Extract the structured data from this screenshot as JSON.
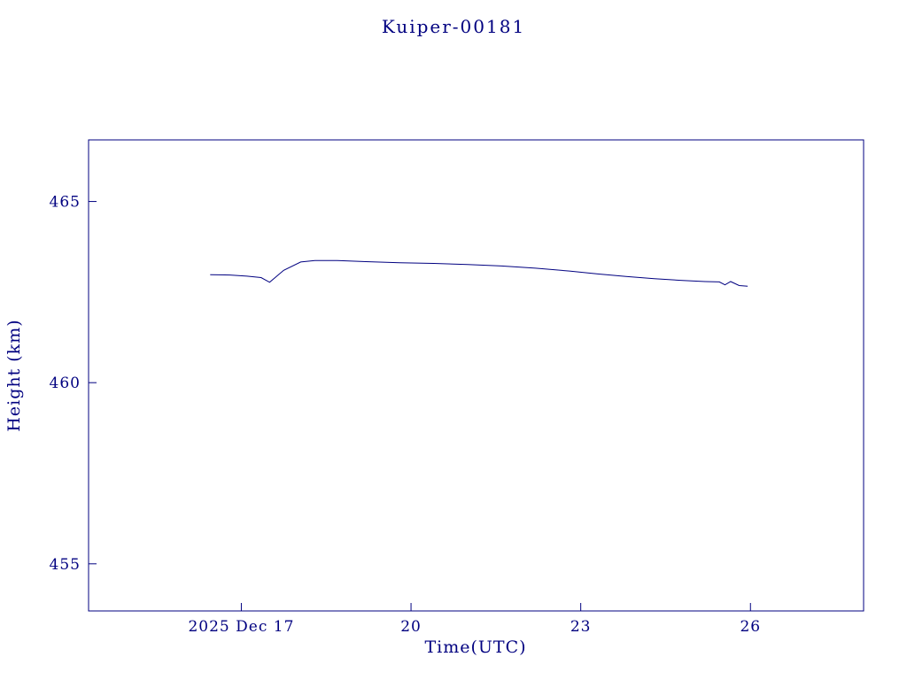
{
  "chart_data": {
    "type": "line",
    "title": "Kuiper-00181",
    "xlabel": "Time(UTC)",
    "ylabel": "Height (km)",
    "accent_color": "#000080",
    "background_color": "#ffffff",
    "grid": false,
    "legend": false,
    "xlim": [
      14.3,
      28.0
    ],
    "ylim": [
      453.7,
      466.7
    ],
    "xticks": [
      {
        "value": 17,
        "label": "2025 Dec 17"
      },
      {
        "value": 20,
        "label": "20"
      },
      {
        "value": 23,
        "label": "23"
      },
      {
        "value": 26,
        "label": "26"
      }
    ],
    "yticks": [
      {
        "value": 455,
        "label": "455"
      },
      {
        "value": 460,
        "label": "460"
      },
      {
        "value": 465,
        "label": "465"
      }
    ],
    "series": [
      {
        "name": "height_km",
        "points": [
          [
            16.45,
            462.98
          ],
          [
            16.8,
            462.97
          ],
          [
            17.1,
            462.94
          ],
          [
            17.35,
            462.9
          ],
          [
            17.5,
            462.77
          ],
          [
            17.75,
            463.1
          ],
          [
            18.05,
            463.33
          ],
          [
            18.3,
            463.37
          ],
          [
            18.7,
            463.37
          ],
          [
            19.2,
            463.34
          ],
          [
            19.8,
            463.31
          ],
          [
            20.4,
            463.29
          ],
          [
            21.0,
            463.26
          ],
          [
            21.6,
            463.22
          ],
          [
            22.2,
            463.16
          ],
          [
            22.8,
            463.08
          ],
          [
            23.3,
            463.0
          ],
          [
            23.8,
            462.93
          ],
          [
            24.3,
            462.87
          ],
          [
            24.8,
            462.82
          ],
          [
            25.2,
            462.79
          ],
          [
            25.45,
            462.78
          ],
          [
            25.55,
            462.7
          ],
          [
            25.65,
            462.79
          ],
          [
            25.8,
            462.68
          ],
          [
            25.95,
            462.66
          ]
        ]
      }
    ]
  }
}
